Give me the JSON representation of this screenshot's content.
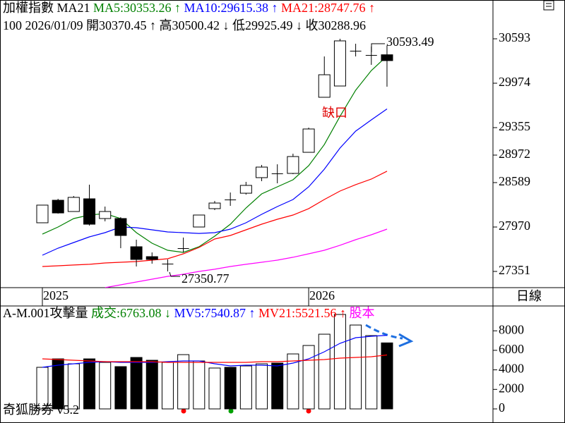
{
  "chart_data": [
    {
      "type": "candlestick",
      "header": "加權指數 MA21",
      "info": [
        "100 2026/01/09",
        "開30370.45",
        "↑",
        "高30500.42",
        "↓",
        "低29925.49",
        "↓",
        "收30288.96"
      ],
      "categories": [
        "2025",
        null,
        null,
        null,
        null,
        null,
        null,
        null,
        null,
        null,
        null,
        null,
        null,
        null,
        null,
        null,
        null,
        "2026",
        null,
        null,
        null,
        null,
        null
      ],
      "open": [
        28029,
        28343,
        28186,
        28363,
        28088,
        28088,
        27695,
        27557,
        27459,
        27675,
        27970,
        28226,
        28353,
        28441,
        28658,
        28717,
        28717,
        29011,
        29778,
        29935,
        30426,
        30367,
        30370.45
      ],
      "high": [
        28275,
        28363,
        28402,
        28560,
        28255,
        28108,
        27793,
        27616,
        27518,
        27823,
        28137,
        28333,
        28451,
        28599,
        28835,
        28844,
        28992,
        29355,
        30347,
        30593.49,
        30524,
        30485,
        30500.42
      ],
      "low": [
        28029,
        28157,
        28186,
        27990,
        28049,
        27675,
        27420,
        27459,
        27350.77,
        27616,
        27970,
        28206,
        28265,
        28422,
        28609,
        28579,
        28707,
        29011,
        29778,
        29935,
        30347,
        30230,
        29925.49
      ],
      "close": [
        28275,
        28166,
        28383,
        28009,
        28186,
        27852,
        27518,
        27518,
        27459,
        27675,
        28137,
        28304,
        28353,
        28550,
        28805,
        28717,
        28952,
        29336,
        30092,
        30564,
        30426,
        30367,
        30288.96
      ],
      "series": [
        {
          "name": "MA5:30353.26",
          "arrow": "↑",
          "color": "#008000",
          "values": [
            27871,
            27970,
            28088,
            28137,
            28157,
            28088,
            27891,
            27744,
            27646,
            27616,
            27695,
            27842,
            28009,
            28235,
            28432,
            28530,
            28628,
            28825,
            29119,
            29512,
            29876,
            30151,
            30353.26
          ]
        },
        {
          "name": "MA10:29615.38",
          "arrow": "↑",
          "color": "#0000ff",
          "values": [
            27577,
            27675,
            27754,
            27832,
            27891,
            27970,
            27960,
            27931,
            27901,
            27891,
            27881,
            27891,
            27940,
            28029,
            28147,
            28255,
            28353,
            28530,
            28776,
            29070,
            29306,
            29463,
            29615.38
          ]
        },
        {
          "name": "MA21:28747.76",
          "arrow": "↑",
          "color": "#ff0000",
          "values": [
            27420,
            27430,
            27440,
            27450,
            27469,
            27479,
            27489,
            27508,
            27528,
            27597,
            27685,
            27803,
            27852,
            27931,
            28009,
            28078,
            28137,
            28226,
            28353,
            28471,
            28560,
            28638,
            28747.76
          ]
        },
        {
          "color": "#ff00ff",
          "values": [
            null,
            null,
            null,
            null,
            27125,
            27164,
            27204,
            27243,
            27282,
            27312,
            27351,
            27381,
            27420,
            27450,
            27479,
            27508,
            27548,
            27597,
            27646,
            27715,
            27793,
            27862,
            27940
          ]
        }
      ],
      "annotations": [
        "30593.49",
        "27350.77",
        "缺口"
      ],
      "period": "日線",
      "ylim": [
        27125,
        31114
      ],
      "yticks": [
        30593,
        29974,
        29355,
        28972,
        28589,
        27970,
        27351
      ]
    },
    {
      "type": "bar",
      "header": "A-M.001攻擊量",
      "volume_name": "成交:6763.08",
      "volume_arrow": "↓",
      "extra": "股本",
      "footer": "奇狐勝券 v5.2",
      "values": [
        4260,
        5126,
        4621,
        5126,
        4765,
        4332,
        5271,
        4982,
        4765,
        5559,
        4910,
        4188,
        4260,
        4404,
        4621,
        4693,
        5632,
        6498,
        7653,
        9675,
        8592,
        7509,
        6763.08
      ],
      "bar_colors": [
        "#fff",
        "#000",
        "#fff",
        "#000",
        "#fff",
        "#000",
        "#000",
        "#000",
        "#fff",
        "#fff",
        "#fff",
        "#fff",
        "#000",
        "#fff",
        "#fff",
        "#000",
        "#fff",
        "#fff",
        "#fff",
        "#fff",
        "#fff",
        "#fff",
        "#000"
      ],
      "series": [
        {
          "name": "MV5:7540.87",
          "arrow": "↑",
          "color": "#0000ff",
          "values": [
            4260,
            4476,
            4621,
            4765,
            4837,
            4765,
            4765,
            4765,
            4837,
            4910,
            4910,
            4621,
            4404,
            4476,
            4476,
            4404,
            4693,
            5126,
            5848,
            6715,
            7292,
            7437,
            7540.87
          ]
        },
        {
          "name": "MV21:5521.56",
          "arrow": "↑",
          "color": "#ff0000",
          "values": [
            5126,
            5054,
            4982,
            4910,
            4837,
            4837,
            4837,
            4837,
            4765,
            4765,
            4765,
            4765,
            4765,
            4765,
            4837,
            4837,
            4910,
            4982,
            5054,
            5198,
            5271,
            5343,
            5521.56
          ]
        }
      ],
      "ylim": [
        -1300,
        10400
      ],
      "yticks": [
        8000,
        6000,
        4000,
        2000,
        0
      ]
    }
  ]
}
